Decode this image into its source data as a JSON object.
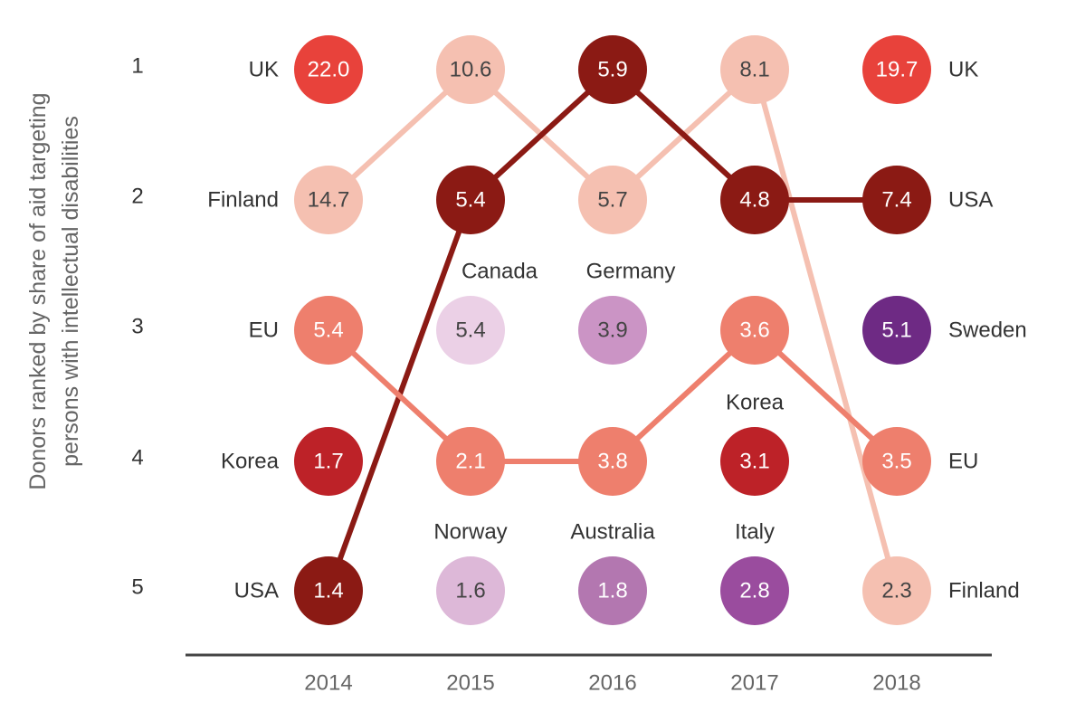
{
  "chart_data": {
    "type": "bump",
    "ylabel": "Donors ranked by share of aid targeting persons with intellectual disabilities",
    "ylabel_lines": [
      "Donors ranked by share of aid targeting",
      "persons with intellectual disabilities"
    ],
    "years": [
      "2014",
      "2015",
      "2016",
      "2017",
      "2018"
    ],
    "ranks": [
      "1",
      "2",
      "3",
      "4",
      "5"
    ],
    "left_labels": [
      "UK",
      "Finland",
      "EU",
      "Korea",
      "USA"
    ],
    "right_labels": [
      "UK",
      "USA",
      "Sweden",
      "EU",
      "Finland"
    ],
    "series": [
      {
        "name": "UK",
        "color": "#e8423b",
        "line": false,
        "points": [
          {
            "year": "2014",
            "rank": 1,
            "value": "22.0"
          },
          {
            "year": "2018",
            "rank": 1,
            "value": "19.7"
          }
        ]
      },
      {
        "name": "Finland",
        "color": "#f5c0b1",
        "line": true,
        "points": [
          {
            "year": "2014",
            "rank": 2,
            "value": "14.7"
          },
          {
            "year": "2015",
            "rank": 1,
            "value": "10.6"
          },
          {
            "year": "2016",
            "rank": 2,
            "value": "5.7"
          },
          {
            "year": "2017",
            "rank": 1,
            "value": "8.1"
          },
          {
            "year": "2018",
            "rank": 5,
            "value": "2.3"
          }
        ]
      },
      {
        "name": "USA",
        "color": "#8b1a14",
        "line": true,
        "points": [
          {
            "year": "2014",
            "rank": 5,
            "value": "1.4"
          },
          {
            "year": "2015",
            "rank": 2,
            "value": "5.4"
          },
          {
            "year": "2016",
            "rank": 1,
            "value": "5.9"
          },
          {
            "year": "2017",
            "rank": 2,
            "value": "4.8"
          },
          {
            "year": "2018",
            "rank": 2,
            "value": "7.4"
          }
        ]
      },
      {
        "name": "EU",
        "color": "#ee7f6d",
        "line": true,
        "points": [
          {
            "year": "2014",
            "rank": 3,
            "value": "5.4"
          },
          {
            "year": "2015",
            "rank": 4,
            "value": "2.1"
          },
          {
            "year": "2016",
            "rank": 4,
            "value": "3.8"
          },
          {
            "year": "2017",
            "rank": 3,
            "value": "3.6"
          },
          {
            "year": "2018",
            "rank": 4,
            "value": "3.5"
          }
        ]
      },
      {
        "name": "Korea",
        "color": "#bd2228",
        "line": false,
        "points": [
          {
            "year": "2014",
            "rank": 4,
            "value": "1.7"
          },
          {
            "year": "2017",
            "rank": 4,
            "value": "3.1"
          }
        ]
      },
      {
        "name": "Canada",
        "color": "#ebd0e6",
        "line": false,
        "points": [
          {
            "year": "2015",
            "rank": 3,
            "value": "5.4"
          }
        ]
      },
      {
        "name": "Norway",
        "color": "#ddb8d8",
        "line": false,
        "points": [
          {
            "year": "2015",
            "rank": 5,
            "value": "1.6"
          }
        ]
      },
      {
        "name": "Germany",
        "color": "#cb94c5",
        "line": false,
        "points": [
          {
            "year": "2016",
            "rank": 3,
            "value": "3.9"
          }
        ]
      },
      {
        "name": "Australia",
        "color": "#b377b0",
        "line": false,
        "points": [
          {
            "year": "2016",
            "rank": 5,
            "value": "1.8"
          }
        ]
      },
      {
        "name": "Italy",
        "color": "#9a4c9e",
        "line": false,
        "points": [
          {
            "year": "2017",
            "rank": 5,
            "value": "2.8"
          }
        ]
      },
      {
        "name": "Sweden",
        "color": "#6e2a84",
        "line": false,
        "points": [
          {
            "year": "2018",
            "rank": 3,
            "value": "5.1"
          }
        ]
      }
    ],
    "annotations": [
      {
        "text": "Canada",
        "year": "2015",
        "rank": 3
      },
      {
        "text": "Germany",
        "year": "2016",
        "rank": 3
      },
      {
        "text": "Korea",
        "year": "2017",
        "rank": 4
      },
      {
        "text": "Norway",
        "year": "2015",
        "rank": 5
      },
      {
        "text": "Australia",
        "year": "2016",
        "rank": 5
      },
      {
        "text": "Italy",
        "year": "2017",
        "rank": 5
      }
    ],
    "dark_text_colors": [
      "#f5c0b1",
      "#ebd0e6",
      "#ddb8d8",
      "#cb94c5"
    ],
    "axis_line_color": "#444444",
    "text_color": "#333333",
    "muted_text_color": "#666666",
    "grid": false
  }
}
